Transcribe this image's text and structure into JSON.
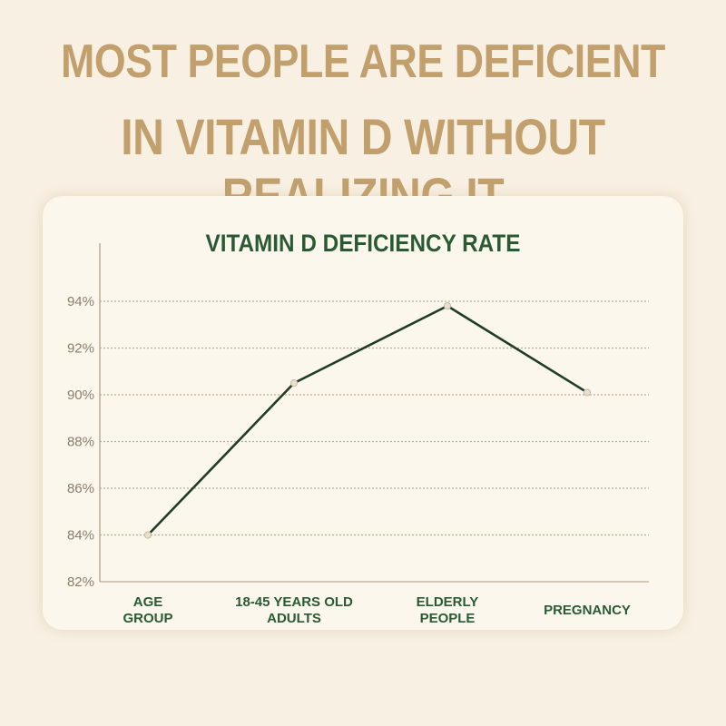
{
  "headline": {
    "line1": "MOST PEOPLE ARE DEFICIENT",
    "line2": "IN VITAMIN D WITHOUT REALIZING IT"
  },
  "colors": {
    "background": "#f8f0e3",
    "headline": "#c1a06e",
    "title": "#2a5a33",
    "line": "#1f3d26",
    "gridline": "#b8ac98"
  },
  "chart_data": {
    "type": "line",
    "title": "VITAMIN D DEFICIENCY RATE",
    "categories": [
      [
        "AGE",
        "GROUP"
      ],
      [
        "18-45 YEARS OLD",
        "ADULTS"
      ],
      [
        "ELDERLY",
        "PEOPLE"
      ],
      [
        "PREGNANCY"
      ]
    ],
    "series": [
      {
        "values": [
          84,
          90.5,
          93.8,
          90.1
        ]
      }
    ],
    "yticks": [
      "82%",
      "84%",
      "86%",
      "88%",
      "90%",
      "92%",
      "94%"
    ],
    "ylim": [
      82,
      94
    ],
    "grid": true,
    "gridstyle": "dashed"
  }
}
